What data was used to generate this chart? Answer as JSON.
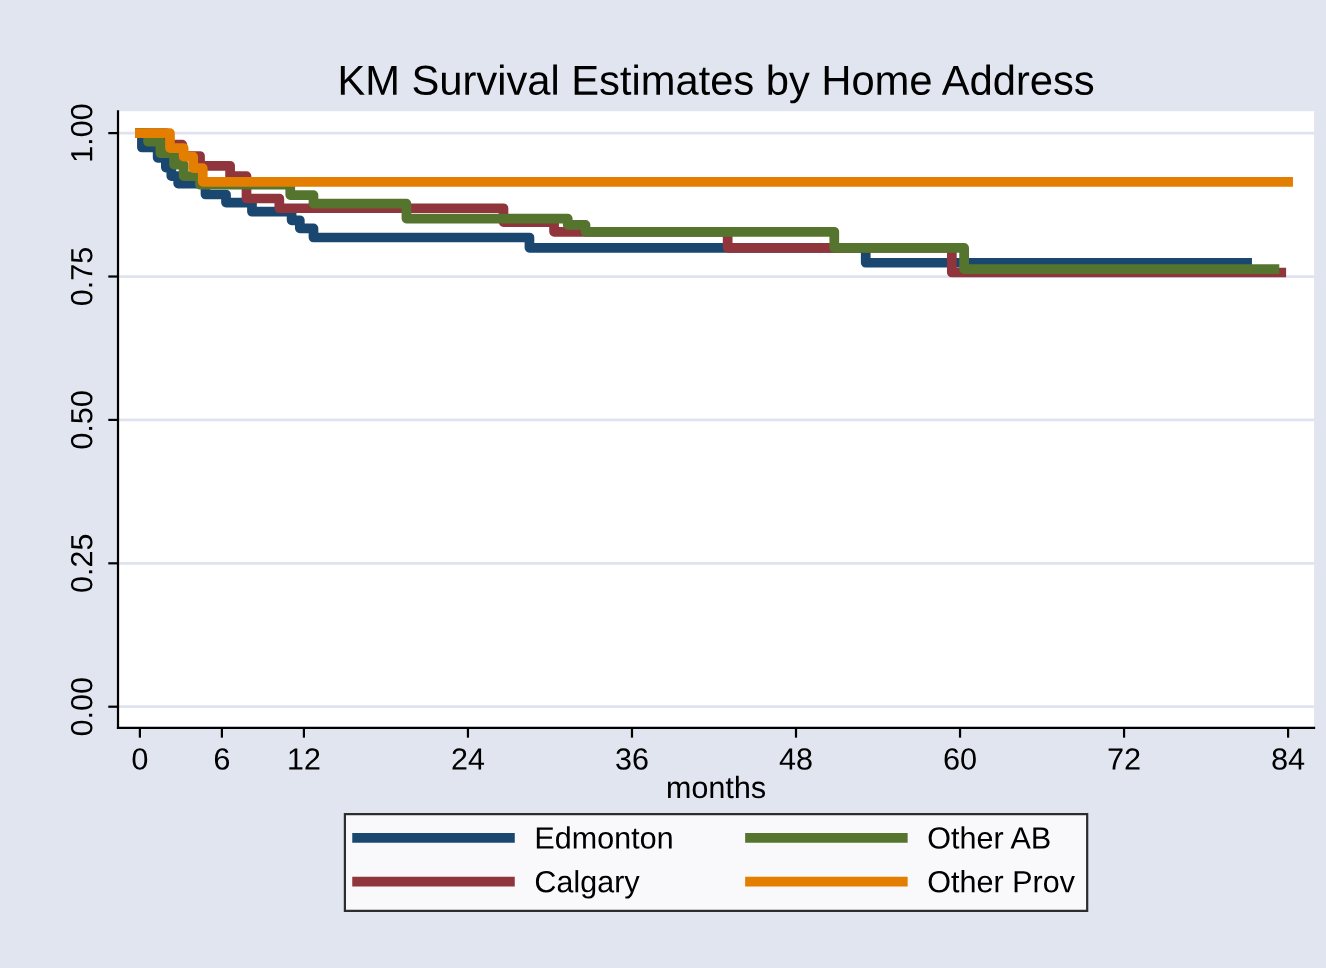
{
  "chart_data": {
    "type": "step",
    "title": "KM Survival Estimates by Home Address",
    "xlabel": "months",
    "xlim": [
      -1.6,
      85.9
    ],
    "xticks": [
      0,
      6,
      12,
      24,
      36,
      48,
      60,
      72,
      84
    ],
    "ylim": [
      -0.037,
      1.038
    ],
    "yticks": [
      {
        "value": 0,
        "label": "0.00"
      },
      {
        "value": 0.25,
        "label": "0.25"
      },
      {
        "value": 0.5,
        "label": "0.50"
      },
      {
        "value": 0.75,
        "label": "0.75"
      },
      {
        "value": 1,
        "label": "1.00"
      }
    ],
    "grid": "y",
    "legend": "bottom",
    "series": [
      {
        "name": "Edmonton",
        "color": "#1a476f",
        "x": [
          0,
          0.15,
          1.3,
          1.9,
          2.3,
          2.8,
          4.8,
          6.3,
          8.2,
          11.1,
          11.7,
          12.7,
          28.5,
          53.1,
          81
        ],
        "values": [
          1.0,
          0.975,
          0.957,
          0.94,
          0.925,
          0.912,
          0.893,
          0.879,
          0.863,
          0.848,
          0.834,
          0.818,
          0.8,
          0.774,
          0.774
        ]
      },
      {
        "name": "Calgary",
        "color": "#90353b",
        "x": [
          0,
          1.9,
          3.1,
          4.4,
          6.6,
          7.8,
          10.2,
          26.6,
          30.3,
          43,
          59.4,
          83.5
        ],
        "values": [
          1.0,
          0.98,
          0.96,
          0.943,
          0.925,
          0.886,
          0.869,
          0.845,
          0.828,
          0.8,
          0.757,
          0.757
        ]
      },
      {
        "name": "Other AB",
        "color": "#55752f",
        "x": [
          0,
          0.6,
          1.5,
          2.5,
          3.2,
          4.4,
          11,
          12.7,
          19.5,
          31.3,
          32.6,
          50.8,
          60.3,
          83
        ],
        "values": [
          1.0,
          0.985,
          0.965,
          0.945,
          0.925,
          0.91,
          0.892,
          0.877,
          0.851,
          0.84,
          0.828,
          0.8,
          0.763,
          0.763
        ]
      },
      {
        "name": "Other Prov",
        "color": "#e37e00",
        "x": [
          0,
          2.2,
          3.2,
          3.9,
          4.6,
          84
        ],
        "values": [
          1.0,
          0.974,
          0.959,
          0.939,
          0.915,
          0.915
        ]
      }
    ]
  }
}
